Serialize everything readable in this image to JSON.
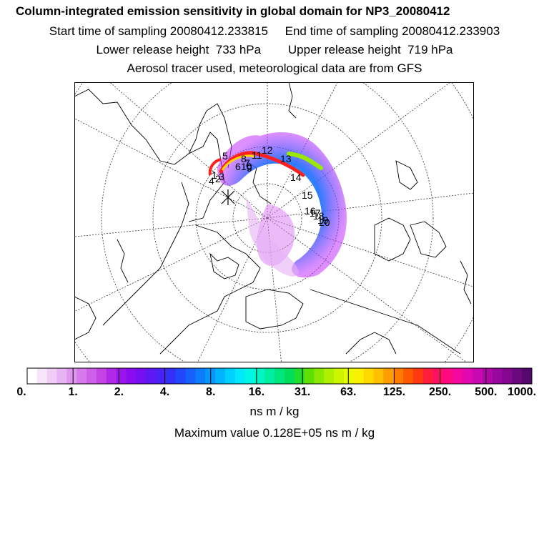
{
  "header": {
    "title": "Column-integrated emission sensitivity in global domain for NP3_20080412",
    "line1": "Start time of sampling 20080412.233815     End time of sampling 20080412.233903",
    "line2": "Lower release height  733 hPa        Upper release height  719 hPa",
    "line3": "Aerosol tracer used, meteorological data are from GFS"
  },
  "map": {
    "track_labels": [
      "1",
      "2",
      "3",
      "4",
      "5",
      "6",
      "7",
      "8",
      "9",
      "10",
      "11",
      "12",
      "13",
      "14",
      "15",
      "16",
      "17",
      "18",
      "19",
      "20"
    ]
  },
  "colorbar": {
    "colors": [
      "#ffffff",
      "#f7e6fb",
      "#f0ccf7",
      "#e8b3f3",
      "#e096ef",
      "#d87aeb",
      "#cf5ee8",
      "#c444e6",
      "#b228e8",
      "#9d15ec",
      "#8a0cf0",
      "#7410f2",
      "#5e18f4",
      "#4a22f6",
      "#3530f8",
      "#2246fa",
      "#1660fc",
      "#0c7cfd",
      "#0698fe",
      "#02b4ff",
      "#00d0ff",
      "#00e8fa",
      "#00f5e2",
      "#00f5c2",
      "#00eea0",
      "#00e67e",
      "#00de5c",
      "#22dd2e",
      "#5ee000",
      "#8ae800",
      "#aef000",
      "#cef500",
      "#e8fa00",
      "#fbf000",
      "#ffd800",
      "#ffbe00",
      "#ff9e00",
      "#ff7c00",
      "#ff5a00",
      "#ff3a12",
      "#ff1e3c",
      "#ff1060",
      "#ff0a82",
      "#f508a0",
      "#e008b0",
      "#c808b0",
      "#b008a8",
      "#98089e",
      "#820890",
      "#6a0880",
      "#55086e"
    ],
    "tick_labels": [
      "0.",
      "1.",
      "2.",
      "4.",
      "8.",
      "16.",
      "31.",
      "63.",
      "125.",
      "250.",
      "500.",
      "1000."
    ],
    "units": "ns m / kg"
  },
  "footer": {
    "max_value": "Maximum value  0.128E+05 ns m / kg"
  }
}
